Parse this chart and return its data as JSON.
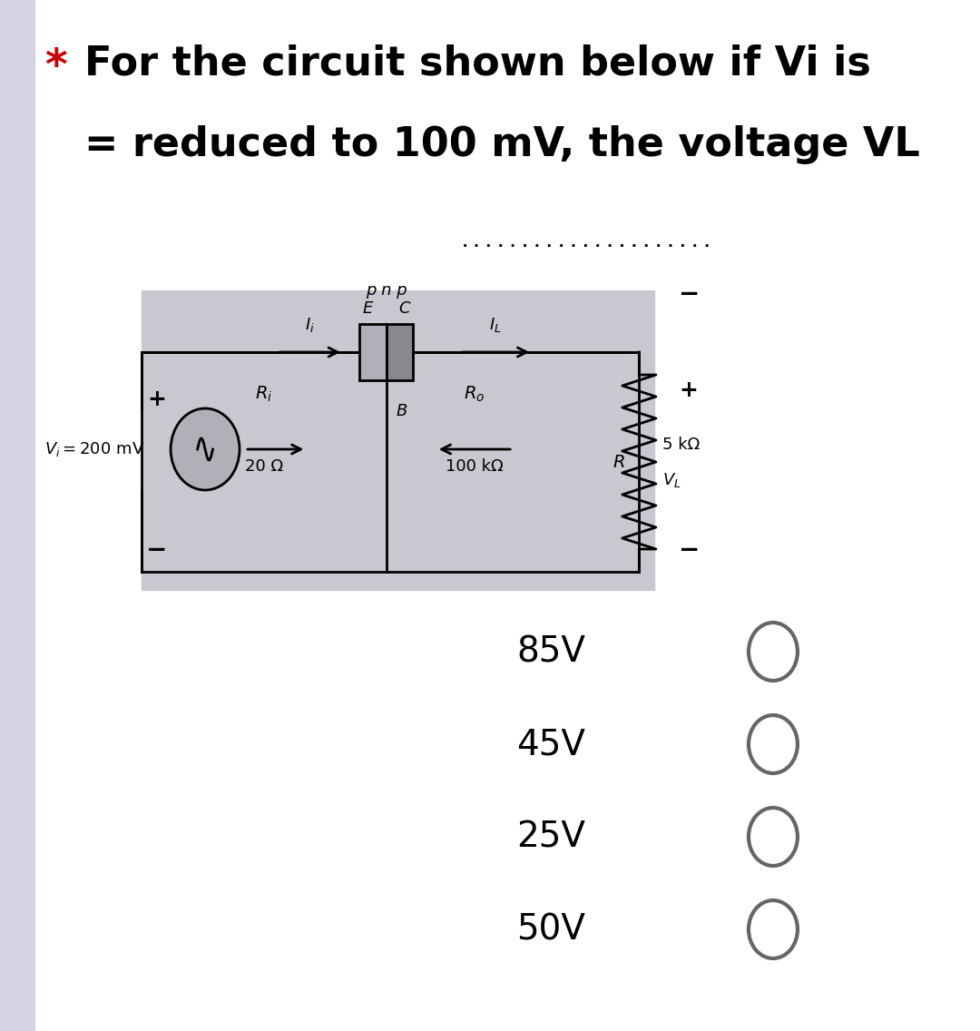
{
  "title_line1": "For the circuit shown below if Vi is",
  "title_line2": "= reduced to 100 mV, the voltage VL",
  "dots": ".....................",
  "star": "*",
  "bg_color": "#ffffff",
  "side_panel_color": "#d4d4e4",
  "circuit_bg": "#c8c8d0",
  "options": [
    "85V",
    "45V",
    "25V",
    "50V"
  ],
  "title_fontsize": 32,
  "option_fontsize": 28
}
